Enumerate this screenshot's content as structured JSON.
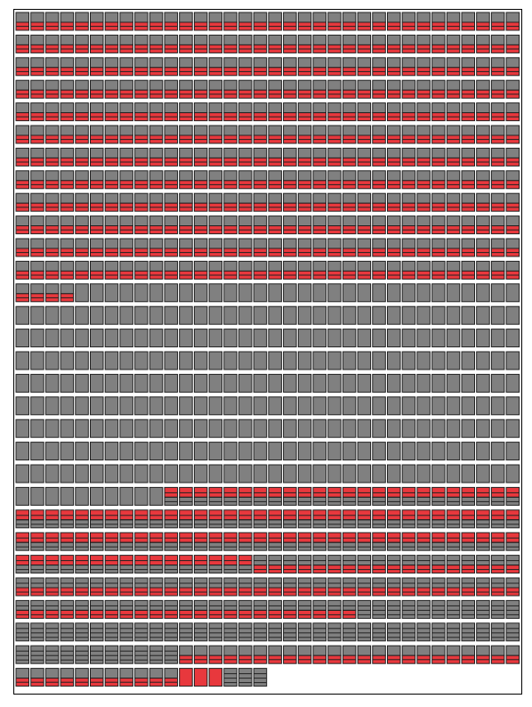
{
  "chart_data": {
    "type": "waffle",
    "columns": 34,
    "series": [
      {
        "values": 412,
        "segments": [
          "#808080",
          "#e8383d"
        ],
        "striped": false
      },
      {
        "values": 312,
        "segments": [
          "#808080"
        ],
        "striped": false
      },
      {
        "values": 108,
        "segments": [
          "#e8383d",
          "#808080"
        ],
        "striped": true
      },
      {
        "values": 75,
        "segments": [
          "#808080",
          "#e8383d"
        ],
        "striped": true
      },
      {
        "values": 56,
        "segments": [
          "#808080"
        ],
        "striped": true
      },
      {
        "values": 34,
        "segments": [
          "#808080",
          "#e8383d"
        ],
        "striped": false
      },
      {
        "values": 3,
        "segments": [
          "#e8383d"
        ],
        "striped": false
      },
      {
        "values": 3,
        "segments": [
          "#808080"
        ],
        "striped": true
      }
    ]
  }
}
